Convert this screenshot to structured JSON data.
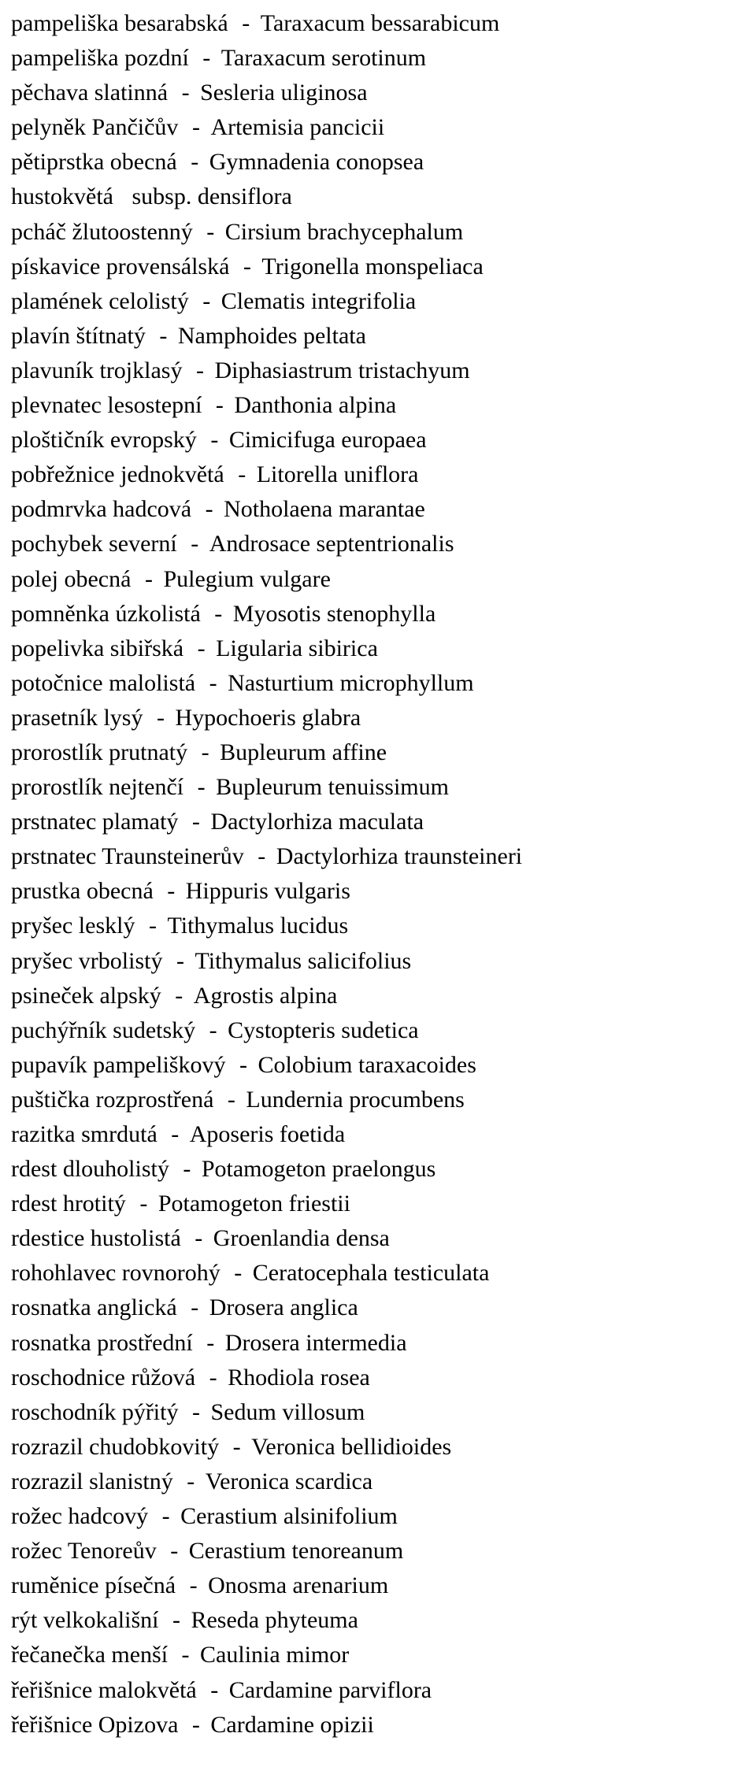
{
  "style": {
    "font_family": "Times New Roman, serif",
    "font_size_pt": 22,
    "line_height": 1.47,
    "text_color": "#000000",
    "background_color": "#ffffff",
    "separator": " - "
  },
  "rows": [
    {
      "cz": "pampeliška  besarabská",
      "lat": "Taraxacum  bessarabicum"
    },
    {
      "cz": "pampeliška  pozdní",
      "lat": "Taraxacum  serotinum"
    },
    {
      "cz": "pěchava  slatinná",
      "lat": "Sesleria  uliginosa"
    },
    {
      "cz": "pelyněk  Pančičův",
      "lat": "Artemisia  pancicii"
    },
    {
      "cz": "pětiprstka  obecná",
      "lat": "Gymnadenia  conopsea"
    },
    {
      "cz": "hustokvětá",
      "lat": "subsp.  densiflora",
      "no_dash": true
    },
    {
      "cz": "pcháč  žlutoostenný",
      "lat": "Cirsium  brachycephalum"
    },
    {
      "cz": "pískavice  provensálská",
      "lat": "Trigonella  monspeliaca"
    },
    {
      "cz": "plamének  celolistý",
      "lat": "Clematis  integrifolia"
    },
    {
      "cz": "plavín  štítnatý",
      "lat": "Namphoides  peltata"
    },
    {
      "cz": "plavuník  trojklasý",
      "lat": "Diphasiastrum  tristachyum"
    },
    {
      "cz": "plevnatec  lesostepní",
      "lat": "Danthonia  alpina"
    },
    {
      "cz": "ploštičník  evropský",
      "lat": "Cimicifuga  europaea"
    },
    {
      "cz": "pobřežnice  jednokvětá",
      "lat": "Litorella  uniflora"
    },
    {
      "cz": "podmrvka  hadcová",
      "lat": "Notholaena  marantae"
    },
    {
      "cz": "pochybek  severní",
      "lat": "Androsace  septentrionalis"
    },
    {
      "cz": "polej  obecná",
      "lat": "Pulegium  vulgare"
    },
    {
      "cz": "pomněnka  úzkolistá",
      "lat": "Myosotis  stenophylla"
    },
    {
      "cz": "popelivka  sibiřská",
      "lat": "Ligularia  sibirica"
    },
    {
      "cz": "potočnice  malolistá",
      "lat": "Nasturtium  microphyllum"
    },
    {
      "cz": "prasetník  lysý",
      "lat": "Hypochoeris  glabra"
    },
    {
      "cz": "prorostlík  prutnatý",
      "lat": "Bupleurum  affine"
    },
    {
      "cz": "prorostlík  nejtenčí",
      "lat": "Bupleurum  tenuissimum"
    },
    {
      "cz": "prstnatec  plamatý",
      "lat": "Dactylorhiza  maculata"
    },
    {
      "cz": "prstnatec  Traunsteinerův",
      "lat": "Dactylorhiza  traunsteineri"
    },
    {
      "cz": "prustka  obecná",
      "lat": "Hippuris  vulgaris"
    },
    {
      "cz": "pryšec  lesklý",
      "lat": "Tithymalus  lucidus"
    },
    {
      "cz": "pryšec  vrbolistý",
      "lat": "Tithymalus  salicifolius"
    },
    {
      "cz": "psineček  alpský",
      "lat": "Agrostis  alpina"
    },
    {
      "cz": "puchýřník  sudetský",
      "lat": "Cystopteris  sudetica"
    },
    {
      "cz": "pupavík  pampeliškový",
      "lat": "Colobium  taraxacoides"
    },
    {
      "cz": "puštička  rozprostřená",
      "lat": "Lundernia  procumbens"
    },
    {
      "cz": "razitka  smrdutá",
      "lat": "Aposeris  foetida"
    },
    {
      "cz": "rdest  dlouholistý",
      "lat": "Potamogeton  praelongus"
    },
    {
      "cz": "rdest  hrotitý",
      "lat": "Potamogeton  friestii"
    },
    {
      "cz": "rdestice  hustolistá",
      "lat": "Groenlandia  densa"
    },
    {
      "cz": "rohohlavec  rovnorohý",
      "lat": "Ceratocephala  testiculata"
    },
    {
      "cz": "rosnatka  anglická",
      "lat": "Drosera  anglica"
    },
    {
      "cz": "rosnatka  prostřední",
      "lat": "Drosera  intermedia"
    },
    {
      "cz": "roschodnice  růžová",
      "lat": "Rhodiola  rosea"
    },
    {
      "cz": "roschodník  pýřitý",
      "lat": "Sedum  villosum"
    },
    {
      "cz": "rozrazil  chudobkovitý",
      "lat": "Veronica  bellidioides"
    },
    {
      "cz": "rozrazil  slanistný",
      "lat": "Veronica  scardica"
    },
    {
      "cz": "rožec  hadcový",
      "lat": "Cerastium  alsinifolium"
    },
    {
      "cz": "rožec  Tenoreův",
      "lat": "Cerastium  tenoreanum"
    },
    {
      "cz": "ruměnice  písečná",
      "lat": "Onosma  arenarium"
    },
    {
      "cz": "rýt  velkokališní",
      "lat": "Reseda  phyteuma"
    },
    {
      "cz": "řečanečka  menší",
      "lat": "Caulinia  mimor"
    },
    {
      "cz": "řeřišnice  malokvětá",
      "lat": "Cardamine  parviflora"
    },
    {
      "cz": "řeřišnice  Opizova",
      "lat": "Cardamine  opizii"
    }
  ]
}
